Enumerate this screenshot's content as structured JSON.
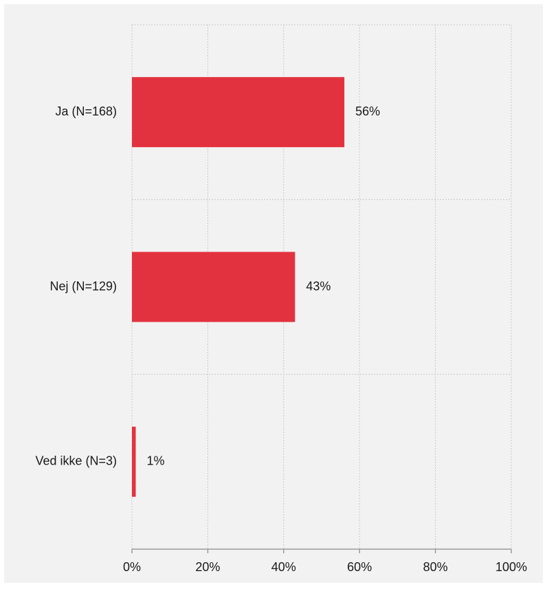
{
  "chart_data": {
    "type": "bar",
    "orientation": "horizontal",
    "title": "",
    "categories": [
      "Ja (N=168)",
      "Nej (N=129)",
      "Ved ikke (N=3)"
    ],
    "values": [
      56,
      43,
      1
    ],
    "value_labels": [
      "56%",
      "43%",
      "1%"
    ],
    "xlim": [
      0,
      100
    ],
    "x_ticks": [
      0,
      20,
      40,
      60,
      80,
      100
    ],
    "x_tick_labels": [
      "0%",
      "20%",
      "40%",
      "60%",
      "80%",
      "100%"
    ],
    "xlabel": "",
    "ylabel": "",
    "grid": true,
    "legend": "none",
    "colors": {
      "bar": "#e3323f",
      "grid": "#c8c8c8",
      "axis": "#9a9a9a",
      "background": "#f2f2f2",
      "text": "#1a1a1a"
    }
  }
}
